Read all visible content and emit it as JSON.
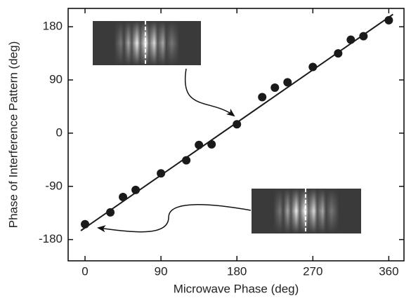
{
  "chart_data": {
    "type": "scatter",
    "x_label": "Microwave Phase (deg)",
    "y_label": "Phase of Interference Pattern (deg)",
    "x": [
      0,
      30,
      45,
      60,
      90,
      120,
      135,
      150,
      180,
      210,
      225,
      240,
      270,
      300,
      315,
      330,
      360
    ],
    "values": [
      -154,
      -134,
      -108,
      -96,
      -68,
      -46,
      -20,
      -19,
      15,
      61,
      77,
      86,
      112,
      135,
      158,
      164,
      191
    ],
    "color": "#1a1a1a",
    "fit": {
      "x": [
        -5,
        365
      ],
      "values": [
        -165,
        201
      ],
      "color": "#1a1a1a"
    },
    "xlim": [
      -20,
      378
    ],
    "xticks": [
      0,
      90,
      180,
      270,
      360
    ],
    "ylim": [
      -216,
      211
    ],
    "yticks": [
      -180,
      -90,
      0,
      90,
      180
    ],
    "grid": false
  }
}
